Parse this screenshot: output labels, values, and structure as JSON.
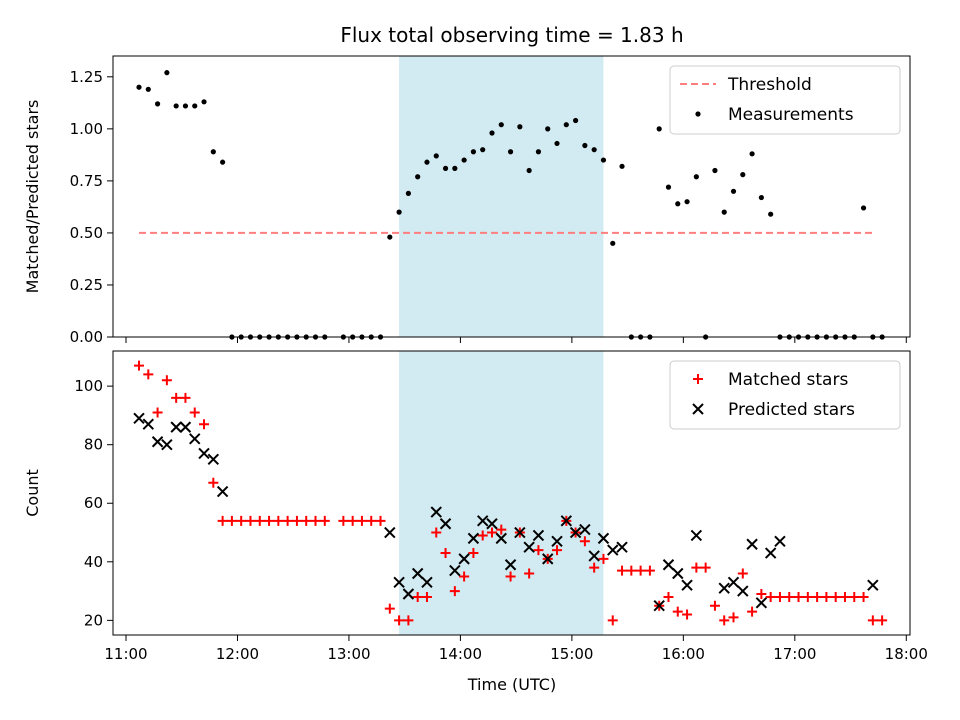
{
  "title": "Flux total observing time = 1.83 h",
  "xlabel": "Time (UTC)",
  "colors": {
    "threshold": "#ff7f7f",
    "measure": "#000000",
    "matched": "#ff0000",
    "predicted": "#000000",
    "shade": "#add8e6"
  },
  "chart_data": [
    {
      "type": "scatter",
      "ylabel": "Matched/Predicted stars",
      "ylim": [
        0,
        1.35
      ],
      "yticks": [
        0.0,
        0.25,
        0.5,
        0.75,
        1.0,
        1.25
      ],
      "ytick_labels": [
        "0.00",
        "0.25",
        "0.50",
        "0.75",
        "1.00",
        "1.25"
      ],
      "xlim": [
        "10:53",
        "18:02"
      ],
      "xticks": [
        "11:00",
        "12:00",
        "13:00",
        "14:00",
        "15:00",
        "16:00",
        "17:00",
        "18:00"
      ],
      "shaded_span": [
        "13:27",
        "15:17"
      ],
      "legend": {
        "placement": "top-right",
        "entries": [
          "Threshold",
          "Measurements"
        ]
      },
      "series": [
        {
          "name": "Threshold",
          "style": "dashed-line",
          "x": [
            "11:07",
            "17:42"
          ],
          "y": [
            0.5,
            0.5
          ]
        },
        {
          "name": "Measurements",
          "style": "dot",
          "x": [
            "11:07",
            "11:12",
            "11:17",
            "11:22",
            "11:27",
            "11:32",
            "11:37",
            "11:42",
            "11:47",
            "11:52",
            "11:57",
            "12:02",
            "12:07",
            "12:12",
            "12:17",
            "12:22",
            "12:27",
            "12:32",
            "12:37",
            "12:42",
            "12:47",
            "12:57",
            "13:02",
            "13:07",
            "13:12",
            "13:17",
            "13:22",
            "13:27",
            "13:32",
            "13:37",
            "13:42",
            "13:47",
            "13:52",
            "13:57",
            "14:02",
            "14:07",
            "14:12",
            "14:17",
            "14:22",
            "14:27",
            "14:32",
            "14:37",
            "14:42",
            "14:47",
            "14:52",
            "14:57",
            "15:02",
            "15:07",
            "15:12",
            "15:17",
            "15:22",
            "15:27",
            "15:32",
            "15:37",
            "15:42",
            "15:47",
            "15:52",
            "15:57",
            "16:02",
            "16:07",
            "16:12",
            "16:17",
            "16:22",
            "16:27",
            "16:32",
            "16:37",
            "16:42",
            "16:47",
            "16:52",
            "16:57",
            "17:02",
            "17:07",
            "17:12",
            "17:17",
            "17:22",
            "17:27",
            "17:32",
            "17:37",
            "17:42",
            "17:47"
          ],
          "y": [
            1.2,
            1.19,
            1.12,
            1.27,
            1.11,
            1.11,
            1.11,
            1.13,
            0.89,
            0.84,
            0.0,
            0.0,
            0.0,
            0.0,
            0.0,
            0.0,
            0.0,
            0.0,
            0.0,
            0.0,
            0.0,
            0.0,
            0.0,
            0.0,
            0.0,
            0.0,
            0.48,
            0.6,
            0.69,
            0.77,
            0.84,
            0.87,
            0.81,
            0.81,
            0.85,
            0.89,
            0.9,
            0.98,
            1.02,
            0.89,
            1.01,
            0.8,
            0.89,
            1.0,
            0.93,
            1.02,
            1.04,
            0.92,
            0.9,
            0.85,
            0.45,
            0.82,
            0.0,
            0.0,
            0.0,
            1.0,
            0.72,
            0.64,
            0.65,
            0.77,
            0.0,
            0.8,
            0.6,
            0.7,
            0.78,
            0.88,
            0.67,
            0.59,
            0.0,
            0.0,
            0.0,
            0.0,
            0.0,
            0.0,
            0.0,
            0.0,
            0.0,
            0.62,
            0.0,
            0.0
          ]
        }
      ]
    },
    {
      "type": "scatter",
      "ylabel": "Count",
      "ylim": [
        15,
        112
      ],
      "yticks": [
        20,
        40,
        60,
        80,
        100
      ],
      "ytick_labels": [
        "20",
        "40",
        "60",
        "80",
        "100"
      ],
      "xlim": [
        "10:53",
        "18:02"
      ],
      "xticks": [
        "11:00",
        "12:00",
        "13:00",
        "14:00",
        "15:00",
        "16:00",
        "17:00",
        "18:00"
      ],
      "xtick_labels": [
        "11:00",
        "12:00",
        "13:00",
        "14:00",
        "15:00",
        "16:00",
        "17:00",
        "18:00"
      ],
      "shaded_span": [
        "13:27",
        "15:17"
      ],
      "legend": {
        "placement": "top-right",
        "entries": [
          "Matched stars",
          "Predicted stars"
        ]
      },
      "series": [
        {
          "name": "Matched stars",
          "style": "plus",
          "x": [
            "11:07",
            "11:12",
            "11:17",
            "11:22",
            "11:27",
            "11:32",
            "11:37",
            "11:42",
            "11:47",
            "11:52",
            "11:57",
            "12:02",
            "12:07",
            "12:12",
            "12:17",
            "12:22",
            "12:27",
            "12:32",
            "12:37",
            "12:42",
            "12:47",
            "12:57",
            "13:02",
            "13:07",
            "13:12",
            "13:17",
            "13:22",
            "13:27",
            "13:32",
            "13:37",
            "13:42",
            "13:47",
            "13:52",
            "13:57",
            "14:02",
            "14:07",
            "14:12",
            "14:17",
            "14:22",
            "14:27",
            "14:32",
            "14:37",
            "14:42",
            "14:47",
            "14:52",
            "14:57",
            "15:02",
            "15:07",
            "15:12",
            "15:17",
            "15:22",
            "15:27",
            "15:32",
            "15:37",
            "15:42",
            "15:47",
            "15:52",
            "15:57",
            "16:02",
            "16:07",
            "16:12",
            "16:17",
            "16:22",
            "16:27",
            "16:32",
            "16:37",
            "16:42",
            "16:47",
            "16:52",
            "16:57",
            "17:02",
            "17:07",
            "17:12",
            "17:17",
            "17:22",
            "17:27",
            "17:32",
            "17:37",
            "17:42",
            "17:47"
          ],
          "y": [
            107,
            104,
            91,
            102,
            96,
            96,
            91,
            87,
            67,
            54,
            54,
            54,
            54,
            54,
            54,
            54,
            54,
            54,
            54,
            54,
            54,
            54,
            54,
            54,
            54,
            54,
            24,
            20,
            20,
            28,
            28,
            50,
            43,
            30,
            35,
            43,
            49,
            50,
            51,
            35,
            50,
            36,
            44,
            41,
            44,
            54,
            50,
            47,
            38,
            41,
            20,
            37,
            37,
            37,
            37,
            25,
            28,
            23,
            22,
            38,
            38,
            25,
            20,
            21,
            36,
            23,
            29,
            28,
            28,
            28,
            28,
            28,
            28,
            28,
            28,
            28,
            28,
            28,
            20,
            20
          ]
        },
        {
          "name": "Predicted stars",
          "style": "x",
          "x": [
            "11:07",
            "11:12",
            "11:17",
            "11:22",
            "11:27",
            "11:32",
            "11:37",
            "11:42",
            "11:47",
            "11:52",
            "13:22",
            "13:27",
            "13:32",
            "13:37",
            "13:42",
            "13:47",
            "13:52",
            "13:57",
            "14:02",
            "14:07",
            "14:12",
            "14:17",
            "14:22",
            "14:27",
            "14:32",
            "14:37",
            "14:42",
            "14:47",
            "14:52",
            "14:57",
            "15:02",
            "15:07",
            "15:12",
            "15:17",
            "15:22",
            "15:27",
            "15:47",
            "15:52",
            "15:57",
            "16:02",
            "16:07",
            "16:22",
            "16:27",
            "16:32",
            "16:37",
            "16:42",
            "16:47",
            "16:52",
            "17:42"
          ],
          "y": [
            89,
            87,
            81,
            80,
            86,
            86,
            82,
            77,
            75,
            64,
            50,
            33,
            29,
            36,
            33,
            57,
            53,
            37,
            41,
            48,
            54,
            53,
            48,
            39,
            50,
            45,
            49,
            41,
            47,
            54,
            50,
            51,
            42,
            48,
            44,
            45,
            25,
            39,
            36,
            32,
            49,
            31,
            33,
            30,
            46,
            26,
            43,
            47,
            32
          ]
        }
      ]
    }
  ]
}
